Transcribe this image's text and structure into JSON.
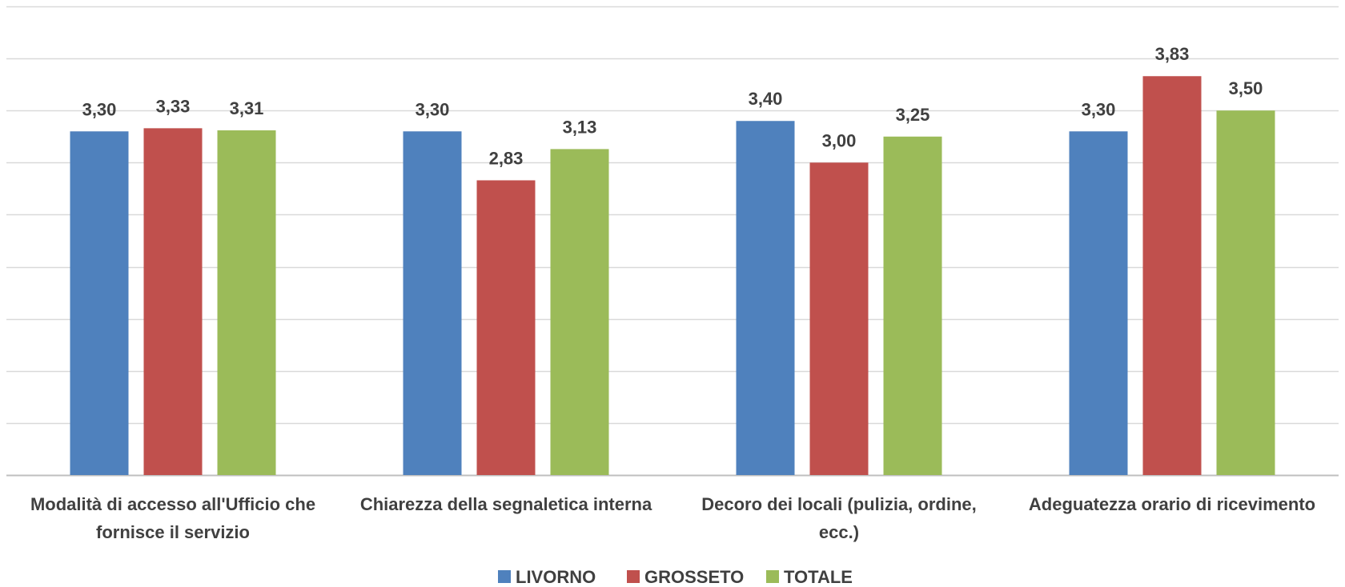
{
  "chart_data": {
    "type": "bar",
    "categories": [
      [
        "Modalità di accesso all'Ufficio che",
        "fornisce il servizio"
      ],
      [
        "Chiarezza della segnaletica interna"
      ],
      [
        "Decoro dei locali (pulizia, ordine,",
        "ecc.)"
      ],
      [
        "Adeguatezza orario di ricevimento"
      ]
    ],
    "series": [
      {
        "name": "LIVORNO",
        "color": "#4f81bd",
        "values": [
          3.3,
          3.3,
          3.4,
          3.3
        ],
        "labels": [
          "3,30",
          "3,30",
          "3,40",
          "3,30"
        ]
      },
      {
        "name": "GROSSETO",
        "color": "#c0504d",
        "values": [
          3.33,
          2.83,
          3.0,
          3.83
        ],
        "labels": [
          "3,33",
          "2,83",
          "3,00",
          "3,83"
        ]
      },
      {
        "name": "TOTALE",
        "color": "#9bbb59",
        "values": [
          3.31,
          3.13,
          3.25,
          3.5
        ],
        "labels": [
          "3,31",
          "3,13",
          "3,25",
          "3,50"
        ]
      }
    ],
    "ylim": [
      0,
      4.5
    ],
    "grid": true,
    "legend": "bottom"
  }
}
